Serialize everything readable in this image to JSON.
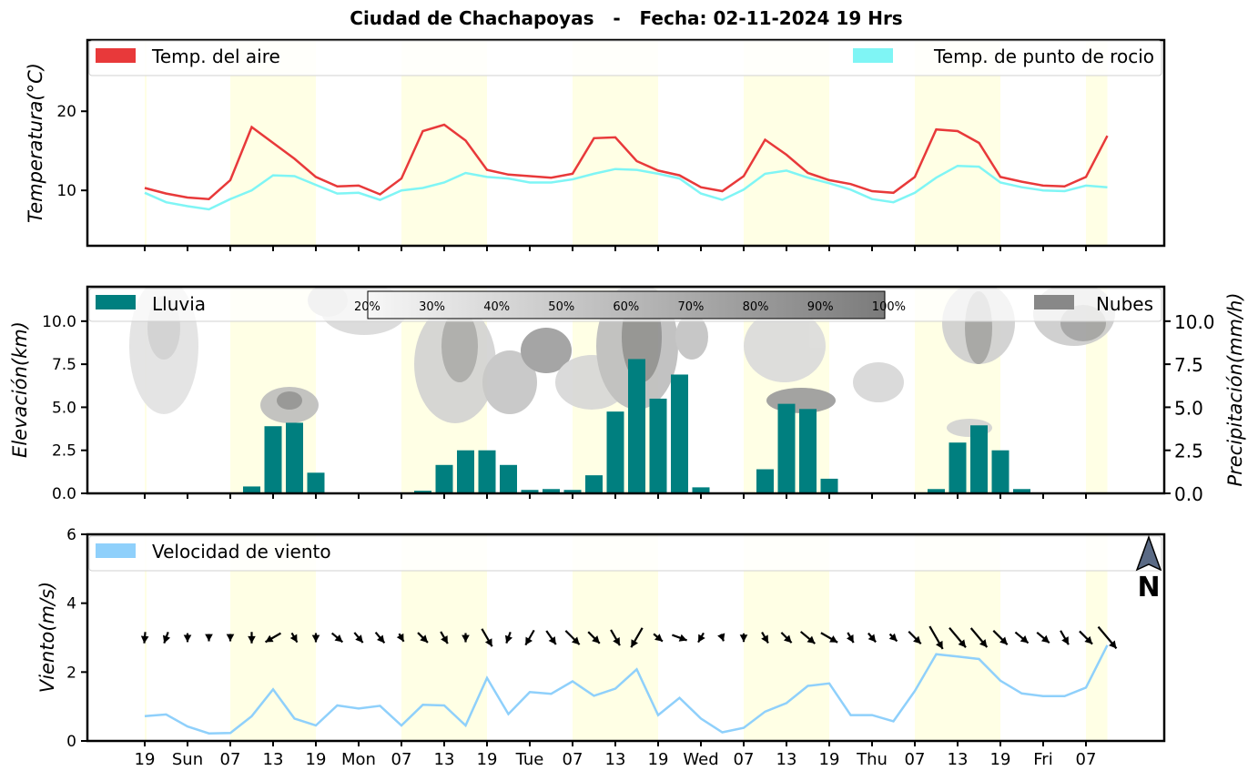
{
  "title": "Ciudad de Chachapoyas   -   Fecha: 02-11-2024 19 Hrs",
  "x_tick_labels": [
    "19",
    "Sun",
    "07",
    "13",
    "19",
    "Mon",
    "07",
    "13",
    "19",
    "Tue",
    "07",
    "13",
    "19",
    "Wed",
    "07",
    "13",
    "19",
    "Thu",
    "07",
    "13",
    "19",
    "Fri",
    "07"
  ],
  "colors": {
    "temp_air": "#e8393a",
    "temp_dew": "#7ff5f5",
    "rain": "#007f7f",
    "cloud_legend": "#888888",
    "wind": "#8fd0fb",
    "daylight": "#ffffe5",
    "north_arrow": "#5a6a85"
  },
  "chart_data": [
    {
      "type": "line",
      "title": "",
      "ylabel": "Temperatura(°C)",
      "ylim": [
        3,
        29
      ],
      "yticks": [
        "10",
        "20"
      ],
      "ytick_values": [
        10,
        20
      ],
      "x": [
        0,
        1,
        2,
        3,
        4,
        5,
        6,
        7,
        8,
        9,
        10,
        11,
        12,
        13,
        14,
        15,
        16,
        17,
        18,
        19,
        20,
        21,
        22,
        23,
        24,
        25,
        26,
        27,
        28,
        29,
        30,
        31,
        32,
        33,
        34,
        35,
        36,
        37,
        38,
        39,
        40,
        41,
        42,
        43,
        44,
        45
      ],
      "series": [
        {
          "name": "Temp. del aire",
          "values": [
            10.3,
            9.6,
            9.1,
            8.9,
            11.3,
            18.0,
            16.0,
            14.0,
            11.7,
            10.5,
            10.6,
            9.5,
            11.5,
            17.5,
            18.3,
            16.3,
            12.6,
            12.0,
            11.8,
            11.6,
            12.1,
            16.6,
            16.7,
            13.7,
            12.5,
            11.9,
            10.4,
            9.9,
            11.8,
            16.4,
            14.5,
            12.2,
            11.3,
            10.8,
            9.9,
            9.7,
            11.7,
            17.7,
            17.5,
            16.0,
            11.7,
            11.1,
            10.6,
            10.5,
            11.7,
            16.9
          ]
        },
        {
          "name": "Temp. de punto de rocio",
          "values": [
            9.7,
            8.5,
            8.0,
            7.6,
            8.9,
            10.0,
            11.9,
            11.8,
            10.7,
            9.6,
            9.7,
            8.8,
            10.0,
            10.3,
            11.0,
            12.2,
            11.7,
            11.5,
            11.0,
            11.0,
            11.4,
            12.1,
            12.7,
            12.6,
            12.1,
            11.5,
            9.6,
            8.8,
            10.1,
            12.1,
            12.5,
            11.6,
            10.9,
            10.1,
            8.9,
            8.5,
            9.7,
            11.6,
            13.1,
            13.0,
            11.0,
            10.4,
            10.0,
            9.9,
            10.6,
            10.4
          ]
        }
      ]
    },
    {
      "type": "bar",
      "title": "",
      "ylabel": "Elevación(km)",
      "ylabel_right": "Precipitación(mm/h)",
      "ylim": [
        0,
        12
      ],
      "yticks": [
        "0.0",
        "2.5",
        "5.0",
        "7.5",
        "10.0"
      ],
      "ytick_values": [
        0,
        2.5,
        5,
        7.5,
        10
      ],
      "legend_left": "Lluvia",
      "legend_right": "Nubes",
      "cloud_colorbar": [
        "20%",
        "30%",
        "40%",
        "50%",
        "60%",
        "70%",
        "80%",
        "90%",
        "100%"
      ],
      "categories": [
        0,
        1,
        2,
        3,
        4,
        5,
        6,
        7,
        8,
        9,
        10,
        11,
        12,
        13,
        14,
        15,
        16,
        17,
        18,
        19,
        20,
        21,
        22,
        23,
        24,
        25,
        26,
        27,
        28,
        29,
        30,
        31,
        32,
        33,
        34,
        35,
        36,
        37,
        38,
        39,
        40,
        41,
        42,
        43,
        44,
        45
      ],
      "values": [
        0,
        0,
        0,
        0,
        0,
        0.4,
        3.9,
        4.1,
        1.2,
        0.05,
        0,
        0,
        0,
        0.15,
        1.65,
        2.5,
        2.5,
        1.65,
        0.2,
        0.25,
        0.2,
        1.05,
        4.75,
        7.8,
        5.5,
        6.9,
        0.35,
        0.05,
        0,
        1.4,
        5.2,
        4.9,
        0.85,
        0,
        0,
        0,
        0,
        0.25,
        2.95,
        3.95,
        2.5,
        0.25,
        0,
        0,
        0,
        0.05
      ]
    },
    {
      "type": "line",
      "title": "",
      "ylabel": "Viento(m/s)",
      "ylim": [
        0,
        6
      ],
      "yticks": [
        "0",
        "2",
        "4",
        "6"
      ],
      "ytick_values": [
        0,
        2,
        4,
        6
      ],
      "legend": "Velocidad de viento",
      "north_label": "N",
      "x": [
        0,
        1,
        2,
        3,
        4,
        5,
        6,
        7,
        8,
        9,
        10,
        11,
        12,
        13,
        14,
        15,
        16,
        17,
        18,
        19,
        20,
        21,
        22,
        23,
        24,
        25,
        26,
        27,
        28,
        29,
        30,
        31,
        32,
        33,
        34,
        35,
        36,
        37,
        38,
        39,
        40,
        41,
        42,
        43,
        44,
        45
      ],
      "series": [
        {
          "name": "Velocidad de viento",
          "values": [
            0.72,
            0.77,
            0.42,
            0.22,
            0.23,
            0.72,
            1.5,
            0.65,
            0.45,
            1.03,
            0.94,
            1.02,
            0.45,
            1.05,
            1.03,
            0.45,
            1.83,
            0.78,
            1.42,
            1.37,
            1.73,
            1.31,
            1.52,
            2.08,
            0.75,
            1.25,
            0.65,
            0.25,
            0.38,
            0.85,
            1.1,
            1.6,
            1.67,
            0.75,
            0.75,
            0.57,
            1.45,
            2.52,
            2.45,
            2.38,
            1.75,
            1.38,
            1.3,
            1.3,
            1.55,
            2.78
          ]
        }
      ],
      "wind_direction_deg": [
        265,
        250,
        270,
        270,
        270,
        270,
        210,
        300,
        270,
        320,
        310,
        310,
        300,
        315,
        300,
        270,
        300,
        250,
        240,
        305,
        315,
        315,
        300,
        240,
        320,
        340,
        240,
        290,
        270,
        300,
        315,
        320,
        330,
        300,
        310,
        315,
        315,
        300,
        310,
        310,
        315,
        320,
        320,
        300,
        315,
        310
      ]
    }
  ]
}
